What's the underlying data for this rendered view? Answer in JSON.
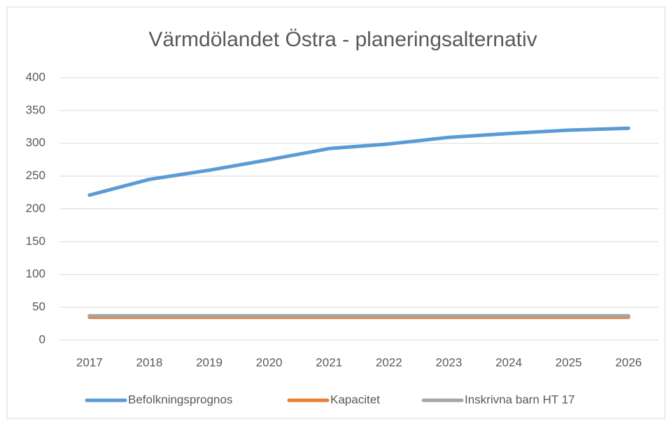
{
  "chart_data": {
    "type": "line",
    "title": "Värmdölandet Östra - planeringsalternativ",
    "categories": [
      "2017",
      "2018",
      "2019",
      "2020",
      "2021",
      "2022",
      "2023",
      "2024",
      "2025",
      "2026"
    ],
    "series": [
      {
        "name": "Befolkningsprognos",
        "color": "#5b9bd5",
        "values": [
          221,
          245,
          259,
          275,
          292,
          299,
          309,
          315,
          320,
          323
        ]
      },
      {
        "name": "Kapacitet",
        "color": "#ed7d31",
        "values": [
          35,
          35,
          35,
          35,
          35,
          35,
          35,
          35,
          35,
          35
        ]
      },
      {
        "name": "Inskrivna barn HT 17",
        "color": "#a5a5a5",
        "values": [
          37,
          37,
          37,
          37,
          37,
          37,
          37,
          37,
          37,
          37
        ]
      }
    ],
    "ylim": [
      0,
      400
    ],
    "yticks": [
      0,
      50,
      100,
      150,
      200,
      250,
      300,
      350,
      400
    ],
    "grid": true,
    "legend": "bottom"
  }
}
